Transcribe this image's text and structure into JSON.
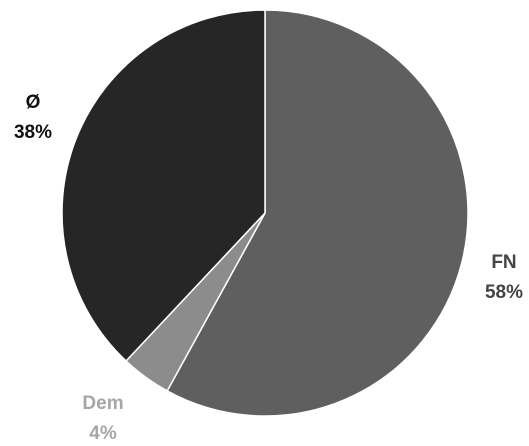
{
  "chart_data": {
    "type": "pie",
    "title": "",
    "start_angle_deg": 0,
    "direction": "clockwise",
    "slices": [
      {
        "label": "FN",
        "value": 58,
        "value_label": "58%",
        "color": "#5f5f5f",
        "label_color": "#444444"
      },
      {
        "label": "Dem",
        "value": 4,
        "value_label": "4%",
        "color": "#8c8c8c",
        "label_color": "#a6a6a6"
      },
      {
        "label": "Ø",
        "value": 38,
        "value_label": "38%",
        "color": "#262626",
        "label_color": "#111111"
      }
    ],
    "legend": "none",
    "data_labels": "outside"
  }
}
